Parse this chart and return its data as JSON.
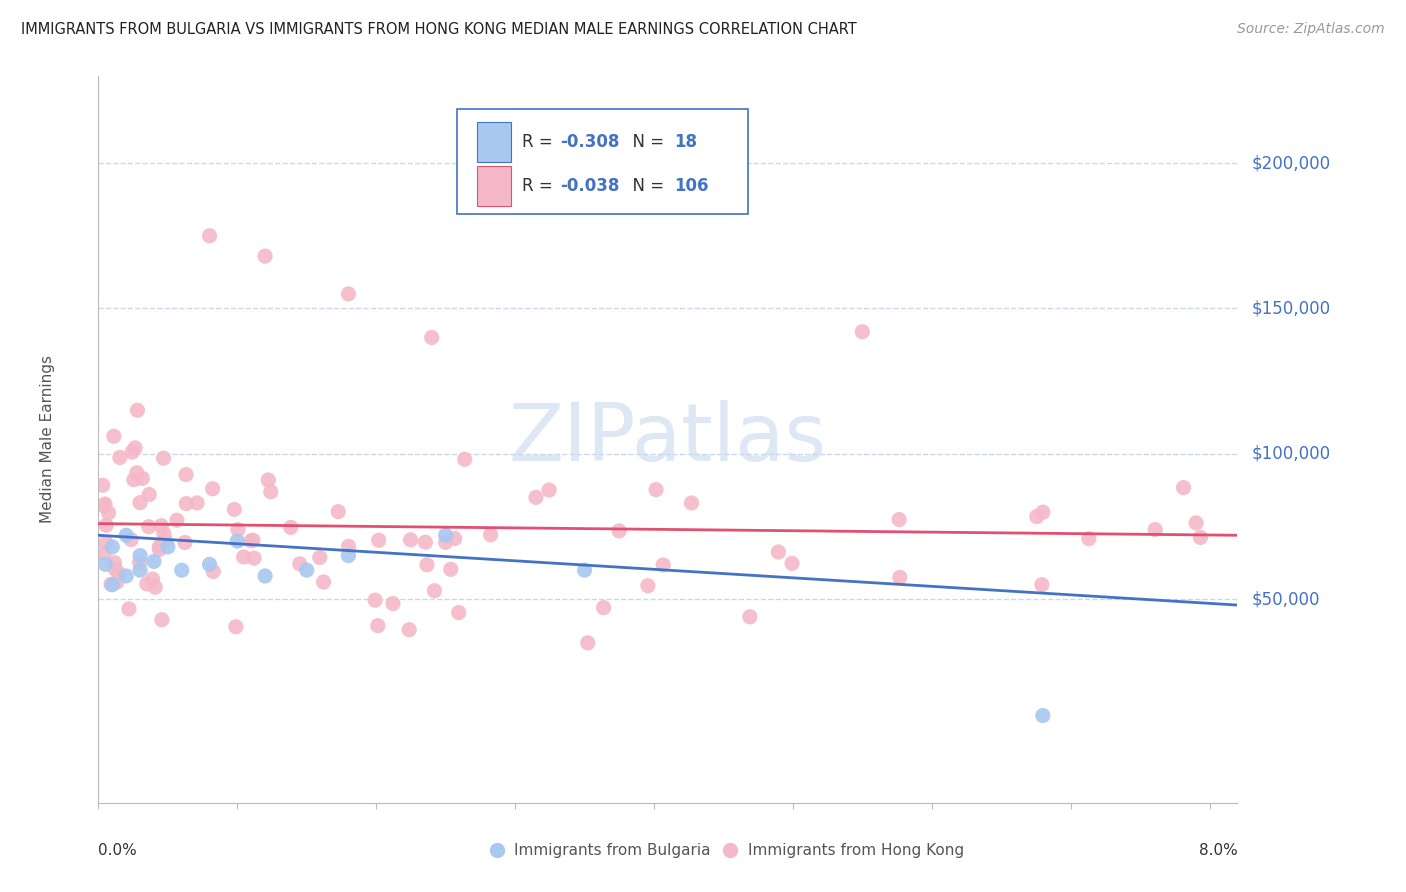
{
  "title": "IMMIGRANTS FROM BULGARIA VS IMMIGRANTS FROM HONG KONG MEDIAN MALE EARNINGS CORRELATION CHART",
  "source": "Source: ZipAtlas.com",
  "ylabel": "Median Male Earnings",
  "watermark": "ZIPatlas",
  "color_bulgaria": "#a8c8f0",
  "color_hongkong": "#f5b8c8",
  "color_bulgaria_line": "#4472c4",
  "color_hongkong_line": "#e05070",
  "color_blue_text": "#4472c4",
  "ytick_labels": [
    "$50,000",
    "$100,000",
    "$150,000",
    "$200,000"
  ],
  "ytick_values": [
    50000,
    100000,
    150000,
    200000
  ],
  "ylim": [
    -20000,
    230000
  ],
  "xlim": [
    0.0,
    0.082
  ],
  "bg_color": "#ffffff",
  "grid_color": "#c8d8f0",
  "bul_trend_x0": 0.0,
  "bul_trend_x1": 0.082,
  "bul_trend_y0": 72000,
  "bul_trend_y1": 48000,
  "hk_trend_x0": 0.0,
  "hk_trend_x1": 0.082,
  "hk_trend_y0": 76000,
  "hk_trend_y1": 72000,
  "legend_label1": "Immigrants from Bulgaria",
  "legend_label2": "Immigrants from Hong Kong",
  "legend_R1": "R = -0.308",
  "legend_N1": "N =  18",
  "legend_R2": "R = -0.038",
  "legend_N2": "N = 106"
}
